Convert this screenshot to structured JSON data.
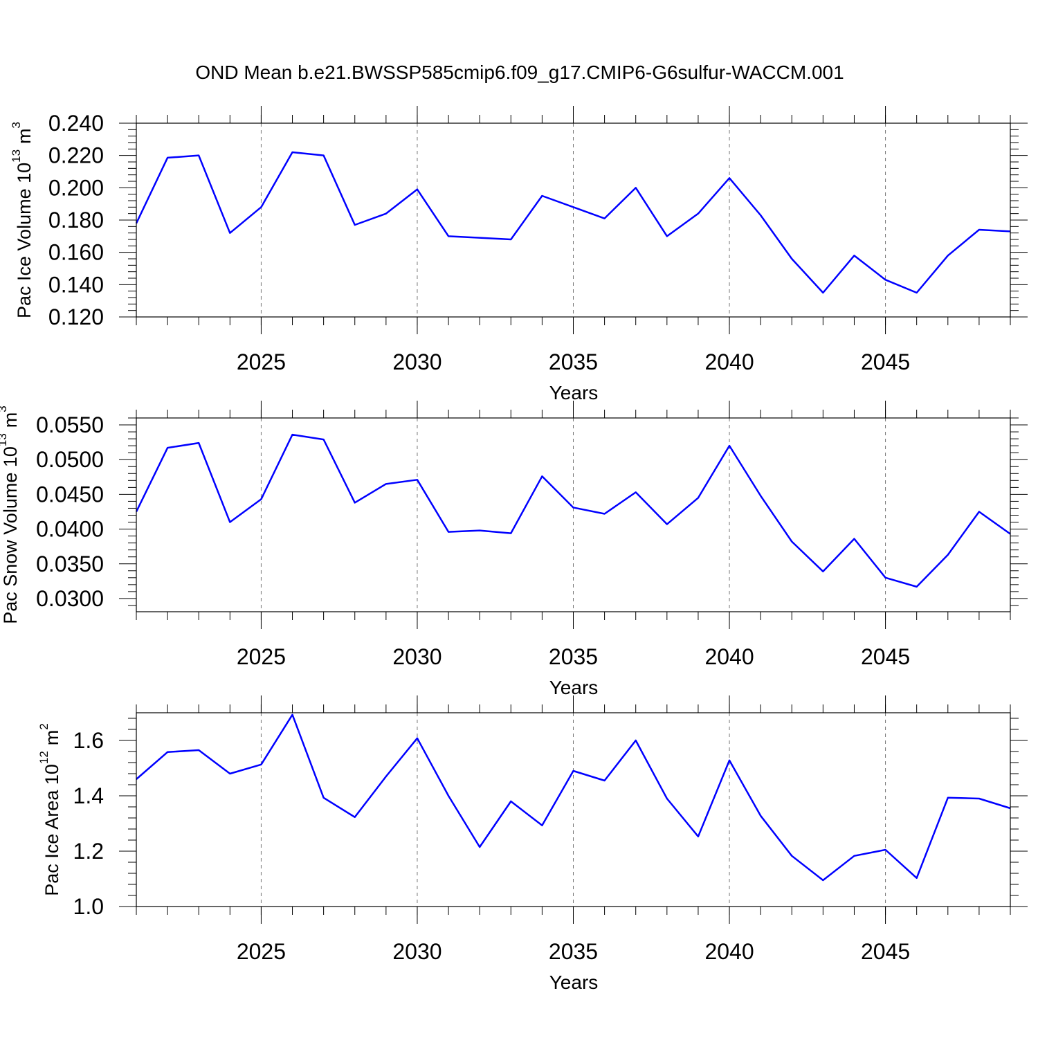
{
  "chart_data": [
    {
      "type": "line",
      "title": "OND Mean b.e21.BWSSP585cmip6.f09_g17.CMIP6-G6sulfur-WACCM.001",
      "ylabel": {
        "text": "Pac Ice Volume 10",
        "exp": "13",
        "unit": "m",
        "unit_exp": "3"
      },
      "xlabel": "Years",
      "x": [
        2021,
        2022,
        2023,
        2024,
        2025,
        2026,
        2027,
        2028,
        2029,
        2030,
        2031,
        2032,
        2033,
        2034,
        2035,
        2036,
        2037,
        2038,
        2039,
        2040,
        2041,
        2042,
        2043,
        2044,
        2045,
        2046,
        2047,
        2048,
        2049
      ],
      "values": [
        0.178,
        0.2186,
        0.22,
        0.172,
        0.188,
        0.222,
        0.22,
        0.177,
        0.184,
        0.199,
        0.17,
        0.169,
        0.168,
        0.195,
        0.188,
        0.181,
        0.2,
        0.17,
        0.184,
        0.206,
        0.183,
        0.156,
        0.135,
        0.158,
        0.143,
        0.135,
        0.158,
        0.174,
        0.173
      ],
      "color": "#0000ff",
      "xlim": [
        2021,
        2049
      ],
      "xticks": [
        2025,
        2030,
        2035,
        2040,
        2045
      ],
      "ylim": [
        0.12,
        0.24
      ],
      "yticks": [
        {
          "value": 0.12,
          "label": "0.120"
        },
        {
          "value": 0.14,
          "label": "0.140"
        },
        {
          "value": 0.16,
          "label": "0.160"
        },
        {
          "value": 0.18,
          "label": "0.180"
        },
        {
          "value": 0.2,
          "label": "0.200"
        },
        {
          "value": 0.22,
          "label": "0.220"
        },
        {
          "value": 0.24,
          "label": "0.240"
        }
      ],
      "grid": true
    },
    {
      "type": "line",
      "ylabel": {
        "text": "Pac Snow Volume 10",
        "exp": "13",
        "unit": "m",
        "unit_exp": "3"
      },
      "xlabel": "Years",
      "x": [
        2021,
        2022,
        2023,
        2024,
        2025,
        2026,
        2027,
        2028,
        2029,
        2030,
        2031,
        2032,
        2033,
        2034,
        2035,
        2036,
        2037,
        2038,
        2039,
        2040,
        2041,
        2042,
        2043,
        2044,
        2045,
        2046,
        2047,
        2048,
        2049
      ],
      "values": [
        0.0425,
        0.0517,
        0.0524,
        0.041,
        0.0443,
        0.0536,
        0.0529,
        0.0438,
        0.0465,
        0.0471,
        0.0396,
        0.0398,
        0.0394,
        0.0476,
        0.0431,
        0.0422,
        0.0453,
        0.0407,
        0.0445,
        0.052,
        0.0448,
        0.0382,
        0.0339,
        0.0386,
        0.033,
        0.0317,
        0.0363,
        0.0425,
        0.0393
      ],
      "color": "#0000ff",
      "xlim": [
        2021,
        2049
      ],
      "xticks": [
        2025,
        2030,
        2035,
        2040,
        2045
      ],
      "ylim": [
        0.0281,
        0.056
      ],
      "yticks": [
        {
          "value": 0.03,
          "label": "0.0300"
        },
        {
          "value": 0.035,
          "label": "0.0350"
        },
        {
          "value": 0.04,
          "label": "0.0400"
        },
        {
          "value": 0.045,
          "label": "0.0450"
        },
        {
          "value": 0.05,
          "label": "0.0500"
        },
        {
          "value": 0.055,
          "label": "0.0550"
        }
      ],
      "grid": true
    },
    {
      "type": "line",
      "ylabel": {
        "text": "Pac Ice Area 10",
        "exp": "12",
        "unit": "m",
        "unit_exp": "2"
      },
      "xlabel": "Years",
      "x": [
        2021,
        2022,
        2023,
        2024,
        2025,
        2026,
        2027,
        2028,
        2029,
        2030,
        2031,
        2032,
        2033,
        2034,
        2035,
        2036,
        2037,
        2038,
        2039,
        2040,
        2041,
        2042,
        2043,
        2044,
        2045,
        2046,
        2047,
        2048,
        2049
      ],
      "values": [
        1.46,
        1.558,
        1.565,
        1.48,
        1.513,
        1.693,
        1.393,
        1.323,
        1.47,
        1.608,
        1.4,
        1.215,
        1.38,
        1.293,
        1.49,
        1.455,
        1.6,
        1.39,
        1.253,
        1.528,
        1.328,
        1.183,
        1.095,
        1.183,
        1.205,
        1.103,
        1.393,
        1.39,
        1.355
      ],
      "color": "#0000ff",
      "xlim": [
        2021,
        2049
      ],
      "xticks": [
        2025,
        2030,
        2035,
        2040,
        2045
      ],
      "ylim": [
        1.0,
        1.7
      ],
      "yticks": [
        {
          "value": 1.0,
          "label": "1.0"
        },
        1.2,
        1.4,
        1.6
      ],
      "grid": true
    }
  ]
}
